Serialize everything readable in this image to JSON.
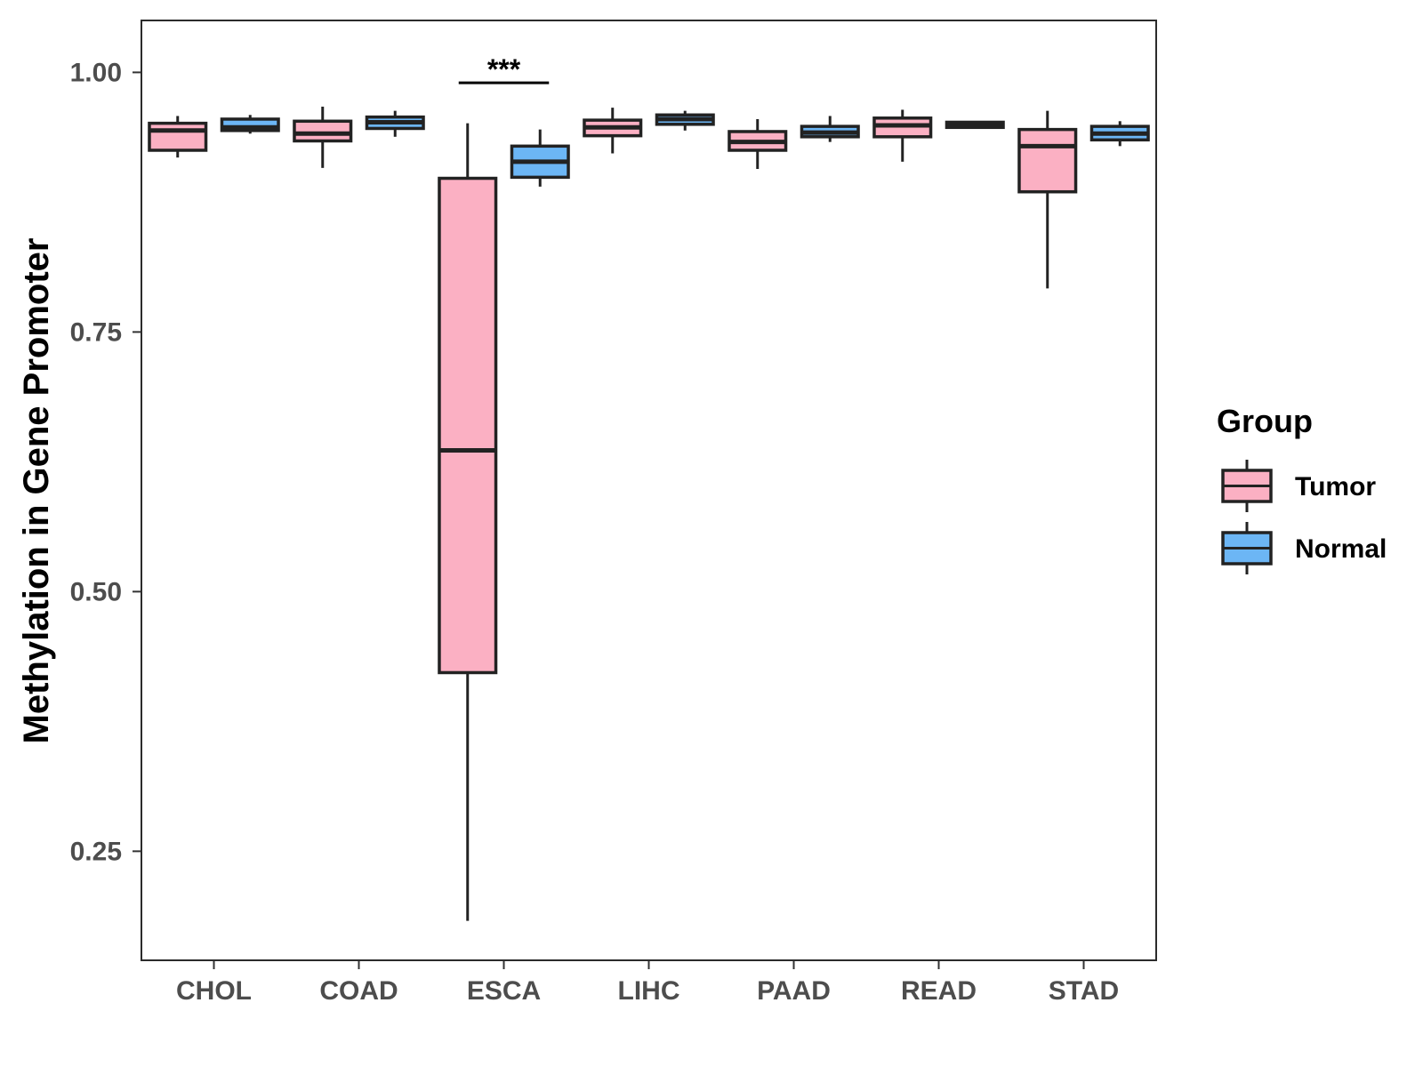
{
  "chart_data": {
    "type": "boxplot",
    "title": "",
    "xlabel": "",
    "ylabel": "Methylation in Gene Promoter",
    "ylim": [
      0.145,
      1.05
    ],
    "yticks": [
      0.25,
      0.5,
      0.75,
      1.0
    ],
    "ytick_labels": [
      "0.25",
      "0.50",
      "0.75",
      "1.00"
    ],
    "categories": [
      "CHOL",
      "COAD",
      "ESCA",
      "LIHC",
      "PAAD",
      "READ",
      "STAD"
    ],
    "legend": {
      "title": "Group",
      "entries": [
        {
          "name": "Tumor",
          "color": "#FBB0C3"
        },
        {
          "name": "Normal",
          "color": "#6CB6F5"
        }
      ]
    },
    "series": [
      {
        "name": "Tumor",
        "color": "#FBB0C3",
        "boxes": [
          {
            "category": "CHOL",
            "min": 0.918,
            "q1": 0.925,
            "median": 0.944,
            "q3": 0.951,
            "max": 0.958
          },
          {
            "category": "COAD",
            "min": 0.908,
            "q1": 0.934,
            "median": 0.941,
            "q3": 0.953,
            "max": 0.967
          },
          {
            "category": "ESCA",
            "min": 0.183,
            "q1": 0.422,
            "median": 0.636,
            "q3": 0.898,
            "max": 0.951
          },
          {
            "category": "LIHC",
            "min": 0.922,
            "q1": 0.939,
            "median": 0.947,
            "q3": 0.954,
            "max": 0.966
          },
          {
            "category": "PAAD",
            "min": 0.907,
            "q1": 0.925,
            "median": 0.933,
            "q3": 0.943,
            "max": 0.955
          },
          {
            "category": "READ",
            "min": 0.914,
            "q1": 0.938,
            "median": 0.949,
            "q3": 0.956,
            "max": 0.964
          },
          {
            "category": "STAD",
            "min": 0.792,
            "q1": 0.885,
            "median": 0.929,
            "q3": 0.945,
            "max": 0.963
          }
        ]
      },
      {
        "name": "Normal",
        "color": "#6CB6F5",
        "boxes": [
          {
            "category": "CHOL",
            "min": 0.941,
            "q1": 0.944,
            "median": 0.947,
            "q3": 0.955,
            "max": 0.959
          },
          {
            "category": "COAD",
            "min": 0.938,
            "q1": 0.946,
            "median": 0.952,
            "q3": 0.957,
            "max": 0.963
          },
          {
            "category": "ESCA",
            "min": 0.89,
            "q1": 0.899,
            "median": 0.914,
            "q3": 0.929,
            "max": 0.945
          },
          {
            "category": "LIHC",
            "min": 0.944,
            "q1": 0.95,
            "median": 0.955,
            "q3": 0.959,
            "max": 0.963
          },
          {
            "category": "PAAD",
            "min": 0.933,
            "q1": 0.938,
            "median": 0.942,
            "q3": 0.948,
            "max": 0.958
          },
          {
            "category": "READ",
            "min": 0.946,
            "q1": 0.947,
            "median": 0.949,
            "q3": 0.952,
            "max": 0.953
          },
          {
            "category": "STAD",
            "min": 0.929,
            "q1": 0.935,
            "median": 0.941,
            "q3": 0.948,
            "max": 0.953
          }
        ]
      }
    ],
    "annotations": [
      {
        "category": "ESCA",
        "label": "***",
        "bracket_y": 0.99
      }
    ]
  }
}
